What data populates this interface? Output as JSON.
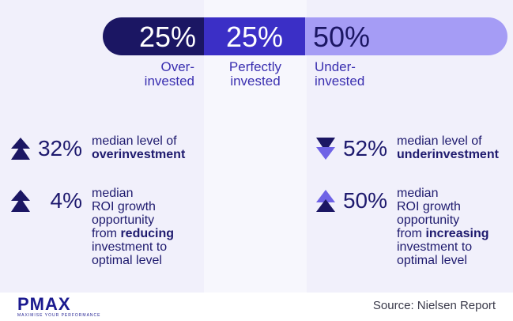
{
  "chart_data": {
    "type": "bar",
    "categories": [
      "Over-invested",
      "Perfectly invested",
      "Under-invested"
    ],
    "category_lines": [
      [
        "Over-",
        "invested"
      ],
      [
        "Perfectly",
        "invested"
      ],
      [
        "Under-",
        "invested"
      ]
    ],
    "values": [
      25,
      25,
      50
    ],
    "value_labels": [
      "25%",
      "25%",
      "50%"
    ],
    "colors": [
      "#1b1663",
      "#3b2fc6",
      "#a59cf5"
    ]
  },
  "stats": {
    "left": [
      {
        "direction": "up",
        "value": "32%",
        "lines": [
          [
            "median level of"
          ],
          [
            "",
            "overinvestment"
          ]
        ]
      },
      {
        "direction": "up",
        "value": "4%",
        "lines": [
          [
            "median"
          ],
          [
            "ROI growth"
          ],
          [
            "opportunity"
          ],
          [
            "from ",
            "reducing"
          ],
          [
            "investment to"
          ],
          [
            "optimal level"
          ]
        ]
      }
    ],
    "right": [
      {
        "direction": "down",
        "value": "52%",
        "lines": [
          [
            "median level of"
          ],
          [
            "",
            "underinvestment"
          ]
        ]
      },
      {
        "direction": "up",
        "value": "50%",
        "lines": [
          [
            "median"
          ],
          [
            "ROI growth"
          ],
          [
            "opportunity"
          ],
          [
            "from ",
            "increasing"
          ],
          [
            "investment to"
          ],
          [
            "optimal level"
          ]
        ]
      }
    ]
  },
  "arrow_colors": {
    "up_dark": "#1b1663",
    "up_light": "#6f63e6",
    "down_dark": "#1b1663",
    "down_light": "#6f63e6"
  },
  "logo": {
    "word": "PMAX",
    "tagline": "MAXIMISE YOUR PERFORMANCE"
  },
  "source": "Source: Nielsen Report"
}
